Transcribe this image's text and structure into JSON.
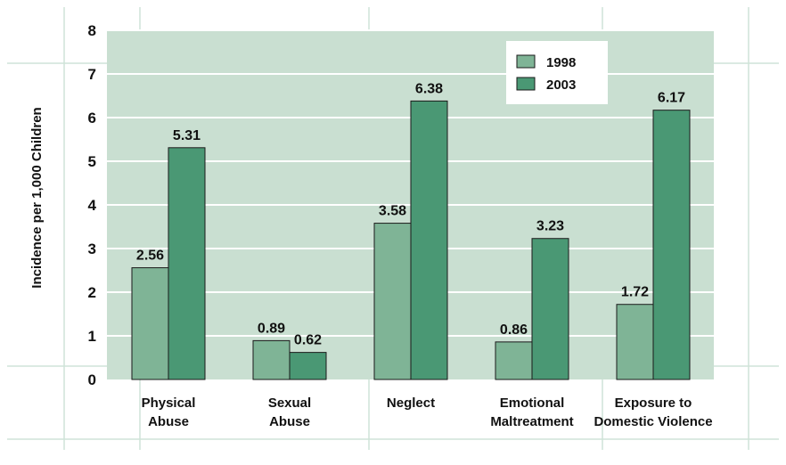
{
  "chart_data": {
    "type": "bar",
    "categories": [
      [
        "Physical",
        "Abuse"
      ],
      [
        "Sexual",
        "Abuse"
      ],
      [
        "Neglect"
      ],
      [
        "Emotional",
        "Maltreatment"
      ],
      [
        "Exposure to",
        "Domestic Violence"
      ]
    ],
    "series": [
      {
        "name": "1998",
        "values": [
          2.56,
          0.89,
          3.58,
          0.86,
          1.72
        ],
        "color": "#7fb496"
      },
      {
        "name": "2003",
        "values": [
          5.31,
          0.62,
          6.38,
          3.23,
          6.17
        ],
        "color": "#4a9874"
      }
    ],
    "data_labels": [
      [
        "2.56",
        "0.89",
        "3.58",
        "0.86",
        "1.72"
      ],
      [
        "5.31",
        "0.62",
        "6.38",
        "3.23",
        "6.17"
      ]
    ],
    "ylabel": "Incidence per 1,000 Children",
    "xlabel": "",
    "yticks": [
      0,
      1,
      2,
      3,
      4,
      5,
      6,
      7,
      8
    ],
    "ylim": [
      0,
      8
    ],
    "grid": true,
    "legend_position": "top-right",
    "colors": {
      "plot_background": "#c9dfd1",
      "gridline": "#ffffff",
      "page_guides": "#cfe3d8",
      "bar_outline": "#1a1a1a"
    }
  }
}
